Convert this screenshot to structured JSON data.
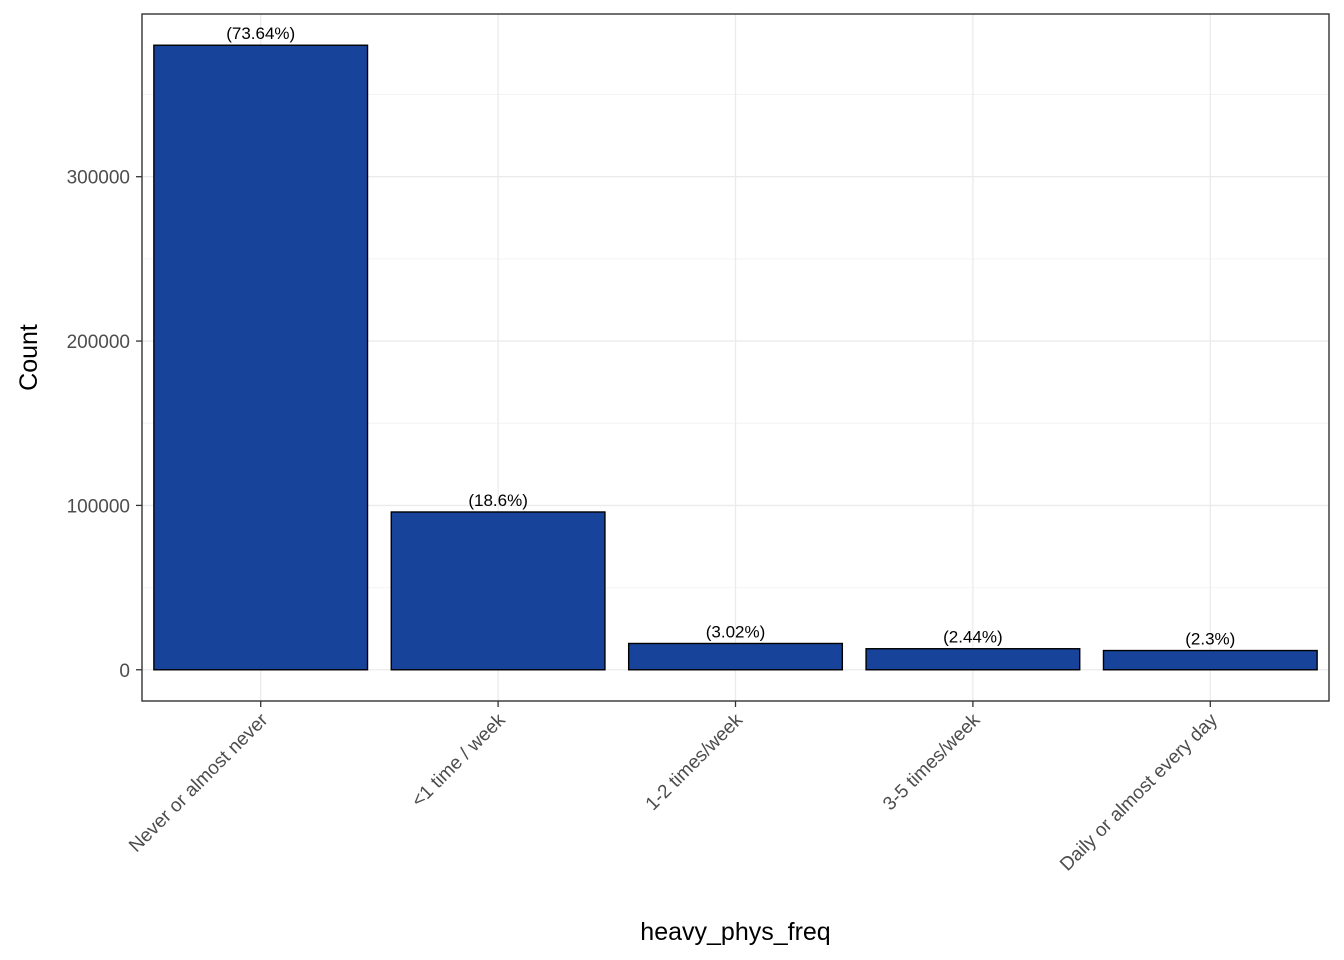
{
  "chart_data": {
    "type": "bar",
    "xlabel": "heavy_phys_freq",
    "ylabel": "Count",
    "categories": [
      "Never or almost never",
      "<1 time / week",
      "1-2 times/week",
      "3-5 times/week",
      "Daily or almost every day"
    ],
    "values": [
      380000,
      96000,
      16000,
      12800,
      11700
    ],
    "labels": [
      "(73.64%)",
      "(18.6%)",
      "(3.02%)",
      "(2.44%)",
      "(2.3%)"
    ],
    "yticks": [
      0,
      100000,
      200000,
      300000
    ],
    "ytick_labels": [
      "0",
      "100000",
      "200000",
      "300000"
    ],
    "ylim": [
      -19000,
      399000
    ],
    "grid": true,
    "legend": "none",
    "colors": {
      "bar_fill": "#17449A",
      "bar_stroke": "#000000",
      "grid_major": "#EBEBEB",
      "grid_minor": "#F4F4F4",
      "panel_border": "#333333"
    }
  }
}
